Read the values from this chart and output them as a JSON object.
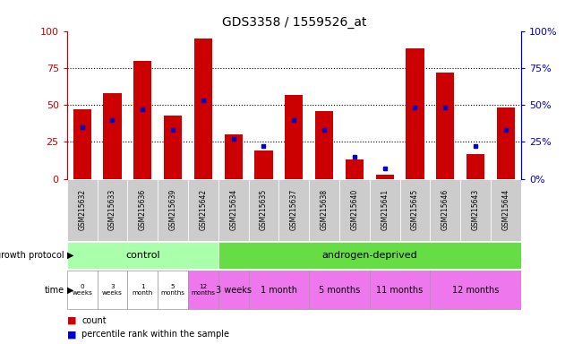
{
  "title": "GDS3358 / 1559526_at",
  "samples": [
    "GSM215632",
    "GSM215633",
    "GSM215636",
    "GSM215639",
    "GSM215642",
    "GSM215634",
    "GSM215635",
    "GSM215637",
    "GSM215638",
    "GSM215640",
    "GSM215641",
    "GSM215645",
    "GSM215646",
    "GSM215643",
    "GSM215644"
  ],
  "count_values": [
    47,
    58,
    80,
    43,
    95,
    30,
    19,
    57,
    46,
    13,
    3,
    88,
    72,
    17,
    48
  ],
  "percentile_values": [
    35,
    40,
    47,
    33,
    53,
    27,
    22,
    40,
    33,
    15,
    7,
    48,
    48,
    22,
    33
  ],
  "bar_color": "#cc0000",
  "dot_color": "#0000cc",
  "ylim": [
    0,
    100
  ],
  "yticks": [
    0,
    25,
    50,
    75,
    100
  ],
  "grid_lines": [
    25,
    50,
    75
  ],
  "control_color": "#aaffaa",
  "androgen_color": "#66dd44",
  "time_pink_color": "#ee77ee",
  "time_white_color": "#ffffff",
  "sample_bg_color": "#cccccc",
  "growth_protocol_label": "growth protocol",
  "time_label": "time",
  "legend_count": "count",
  "legend_percentile": "percentile rank within the sample",
  "control_label": "control",
  "androgen_label": "androgen-deprived",
  "control_indices": [
    0,
    1,
    2,
    3,
    4
  ],
  "androgen_indices": [
    5,
    6,
    7,
    8,
    9,
    10,
    11,
    12,
    13,
    14
  ],
  "ctrl_time_labels": [
    "0\nweeks",
    "3\nweeks",
    "1\nmonth",
    "5\nmonths",
    "12\nmonths"
  ],
  "ctrl_time_pink": [
    false,
    false,
    false,
    false,
    true
  ],
  "and_time_groups": [
    {
      "indices": [
        5
      ],
      "label": "3 weeks"
    },
    {
      "indices": [
        6,
        7
      ],
      "label": "1 month"
    },
    {
      "indices": [
        8,
        9
      ],
      "label": "5 months"
    },
    {
      "indices": [
        10,
        11
      ],
      "label": "11 months"
    },
    {
      "indices": [
        12,
        13,
        14
      ],
      "label": "12 months"
    }
  ],
  "bg_color": "#ffffff",
  "left_axis_color": "#cc0000",
  "right_axis_color": "#0000cc"
}
